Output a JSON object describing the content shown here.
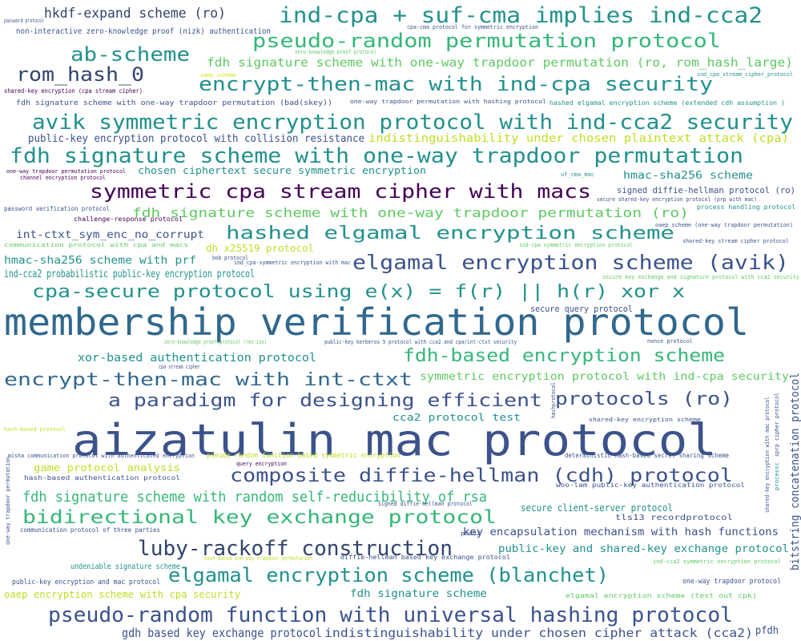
{
  "words": [
    {
      "text": "hkdf-expand scheme (ro)",
      "color": "#31446b"
    },
    {
      "text": "password protocol",
      "color": "#3b528b"
    },
    {
      "text": "ind-cpa + suf-cma implies ind-cca2",
      "color": "#21918c"
    },
    {
      "text": "non-interactive zero-knowledge proof (nizk) authentication",
      "color": "#3b528b"
    },
    {
      "text": "cpa-cma protocol for symmetric encryption",
      "color": "#3b528b"
    },
    {
      "text": "pseudo-random permutation protocol",
      "color": "#35b779"
    },
    {
      "text": "zero-knowledge proof protocol",
      "color": "#5ec962"
    },
    {
      "text": "ab-scheme",
      "color": "#21918c"
    },
    {
      "text": "fdh signature scheme with one-way trapdoor permutation (ro, rom_hash_large)",
      "color": "#5ec962"
    },
    {
      "text": "rom_hash_0",
      "color": "#31446b"
    },
    {
      "text": "samp scheme",
      "color": "#d8e219"
    },
    {
      "text": "ind_cpa_stream_cipher_protocol",
      "color": "#21918c"
    },
    {
      "text": "encrypt-then-mac with ind-cpa security",
      "color": "#21918c"
    },
    {
      "text": "shared-key encryption (cpa stream cipher)",
      "color": "#440154"
    },
    {
      "text": "fdh signature scheme with one-way trapdoor permutation (bad(skey))",
      "color": "#3b528b"
    },
    {
      "text": "one-way trapdoor permutation with hashing protocol",
      "color": "#3b528b"
    },
    {
      "text": "hashed elgamal encryption scheme (extended cdh assumption )",
      "color": "#21918c"
    },
    {
      "text": "avik symmetric encryption protocol with ind-cca2 security",
      "color": "#21918c"
    },
    {
      "text": "public-key encryption protocol with collision resistance",
      "color": "#3b528b"
    },
    {
      "text": "indistinguishability under chosen plaintext attack (cpa)",
      "color": "#bddf26"
    },
    {
      "text": "fdh signature scheme with one-way trapdoor permutation",
      "color": "#21918c"
    },
    {
      "text": "one-way trapdoor permutation protocol",
      "color": "#440154"
    },
    {
      "text": "channel encryption protocol",
      "color": "#440154"
    },
    {
      "text": "chosen ciphertext secure symmetric encryption",
      "color": "#21918c"
    },
    {
      "text": "uf_cma_mac",
      "color": "#21918c"
    },
    {
      "text": "hmac-sha256 scheme",
      "color": "#21918c"
    },
    {
      "text": "symmetric cpa stream cipher with macs",
      "color": "#440154"
    },
    {
      "text": "signed diffie-hellman protocol (ro)",
      "color": "#3b528b"
    },
    {
      "text": "secure shared-key encryption protocol (prp with mac)",
      "color": "#3b528b"
    },
    {
      "text": "password verification protocol",
      "color": "#3b528b"
    },
    {
      "text": "fdh signature scheme with one-way trapdoor permutation (ro)",
      "color": "#5ec962"
    },
    {
      "text": "process handling protocol",
      "color": "#21918c"
    },
    {
      "text": "challenge-response protocol",
      "color": "#440154"
    },
    {
      "text": "oaep scheme (one-way trapdoor permutation)",
      "color": "#3b528b"
    },
    {
      "text": "hashed elgamal encryption scheme",
      "color": "#21918c"
    },
    {
      "text": "int-ctxt_sym_enc_no_corrupt",
      "color": "#3b528b"
    },
    {
      "text": "communication protocol with cpa and macs",
      "color": "#5ec962"
    },
    {
      "text": "dh x25519 protocol",
      "color": "#bddf26"
    },
    {
      "text": "ind-cpa symmetric encryption protocol",
      "color": "#5ec962"
    },
    {
      "text": "shared-key stream cipher protocol",
      "color": "#3b528b"
    },
    {
      "text": "bob protocol",
      "color": "#3b528b"
    },
    {
      "text": "hmac-sha256 scheme with prf",
      "color": "#21918c"
    },
    {
      "text": "ind_cpa-symmetric encryption with mac",
      "color": "#3b528b"
    },
    {
      "text": "elgamal encryption scheme (avik)",
      "color": "#3b528b"
    },
    {
      "text": "ind-cca2 probabilistic public-key encryption protocol",
      "color": "#21918c"
    },
    {
      "text": "secure key exchange and signature protocol with cca2 security",
      "color": "#5ec962"
    },
    {
      "text": "cpa-secure protocol using e(x) = f(r) || h(r) xor x",
      "color": "#21918c"
    },
    {
      "text": "secure query protocol",
      "color": "#3b528b"
    },
    {
      "text": "membership verification protocol",
      "color": "#31688e"
    },
    {
      "text": "zero-knowledge proof protocol (rev:iso)",
      "color": "#5ec962"
    },
    {
      "text": "public-key kerberos 5 protocol with cca2 and cpa/int-ctxt security",
      "color": "#3b528b"
    },
    {
      "text": "nonce protocol",
      "color": "#3b528b"
    },
    {
      "text": "xor-based authentication protocol",
      "color": "#21918c"
    },
    {
      "text": "fdh-based encryption scheme",
      "color": "#35b779"
    },
    {
      "text": "cpa stream cipher",
      "color": "#3b528b"
    },
    {
      "text": "encrypt-then-mac with int-ctxt",
      "color": "#31688e"
    },
    {
      "text": "symmetric encryption protocol with ind-cpa security",
      "color": "#5ec962"
    },
    {
      "text": "a paradigm for designing efficient",
      "color": "#3b528b"
    },
    {
      "text": "protocols (ro)",
      "color": "#3b528b"
    },
    {
      "text": "hashprotocol",
      "color": "#3b528b"
    },
    {
      "text": "hash-based protocol",
      "color": "#bddf26"
    },
    {
      "text": "cca2 protocol test",
      "color": "#21918c"
    },
    {
      "text": "aizatulin mac protocol",
      "color": "#3b528b"
    },
    {
      "text": "shared-key encryption scheme",
      "color": "#3b528b"
    },
    {
      "text": "deterministic hash-based secret sharing scheme",
      "color": "#3b528b"
    },
    {
      "text": "misha communication protocol with authenticated encryption",
      "color": "#3b528b"
    },
    {
      "text": "pseudo random function based symmetric encryption",
      "color": "#bddf26"
    },
    {
      "text": "game protocol analysis",
      "color": "#bddf26"
    },
    {
      "text": "query encryption",
      "color": "#440154"
    },
    {
      "text": "composite diffie-hellman (cdh) protocol",
      "color": "#3b528b"
    },
    {
      "text": "hash-based authentication protocol",
      "color": "#3b528b"
    },
    {
      "text": "fdh signature scheme with random self-reducibility of rsa",
      "color": "#35b779"
    },
    {
      "text": "woo-lam public-key authentication protocol",
      "color": "#3b528b"
    },
    {
      "text": "signed diffie-hellman protocol",
      "color": "#3b528b"
    },
    {
      "text": "secure client-server protocol",
      "color": "#21918c"
    },
    {
      "text": "bidirectional key exchange protocol",
      "color": "#35b779"
    },
    {
      "text": "tls13 recordprotocol",
      "color": "#3b528b"
    },
    {
      "text": "communication protocol of three parties",
      "color": "#3b528b"
    },
    {
      "text": "pcdh2",
      "color": "#3b528b"
    },
    {
      "text": "key encapsulation mechanism with hash functions",
      "color": "#3b528b"
    },
    {
      "text": "luby-rackoff construction",
      "color": "#31446b"
    },
    {
      "text": "public-key and shared-key exchange protocol",
      "color": "#21918c"
    },
    {
      "text": "diffie-hellman based key exchange protocol",
      "color": "#3b528b"
    },
    {
      "text": "hash-based one-way trapdoor permutation",
      "color": "#bddf26"
    },
    {
      "text": "undeniable signature scheme",
      "color": "#21918c"
    },
    {
      "text": "ind-cca2 symmetric encryption protocol",
      "color": "#5ec962"
    },
    {
      "text": "elgamal encryption scheme (blanchet)",
      "color": "#21918c"
    },
    {
      "text": "public-key encryption and mac protocol",
      "color": "#3b528b"
    },
    {
      "text": "one-way trapdoor protocol",
      "color": "#3b528b"
    },
    {
      "text": "oaep encryption scheme with cpa security",
      "color": "#bddf26"
    },
    {
      "text": "fdh signature scheme",
      "color": "#21918c"
    },
    {
      "text": "elgamal encryption scheme (test out cpk)",
      "color": "#5ec962"
    },
    {
      "text": "pseudo-random function with universal hashing protocol",
      "color": "#3b528b"
    },
    {
      "text": "gdh based key exchange protocol",
      "color": "#3b528b"
    },
    {
      "text": "indistinguishability under chosen cipher attack (cca2)",
      "color": "#3b528b"
    },
    {
      "text": "pfdh",
      "color": "#3b528b"
    },
    {
      "text": "bitstring concatenation protocol",
      "color": "#3b528b"
    },
    {
      "text": "shared-key encryption with mac protocol",
      "color": "#3b528b"
    },
    {
      "text": "sprp cipher protocol",
      "color": "#3b528b"
    },
    {
      "text": "processc",
      "color": "#21918c"
    },
    {
      "text": "one-way trapdoor permutation",
      "color": "#3b528b"
    }
  ]
}
